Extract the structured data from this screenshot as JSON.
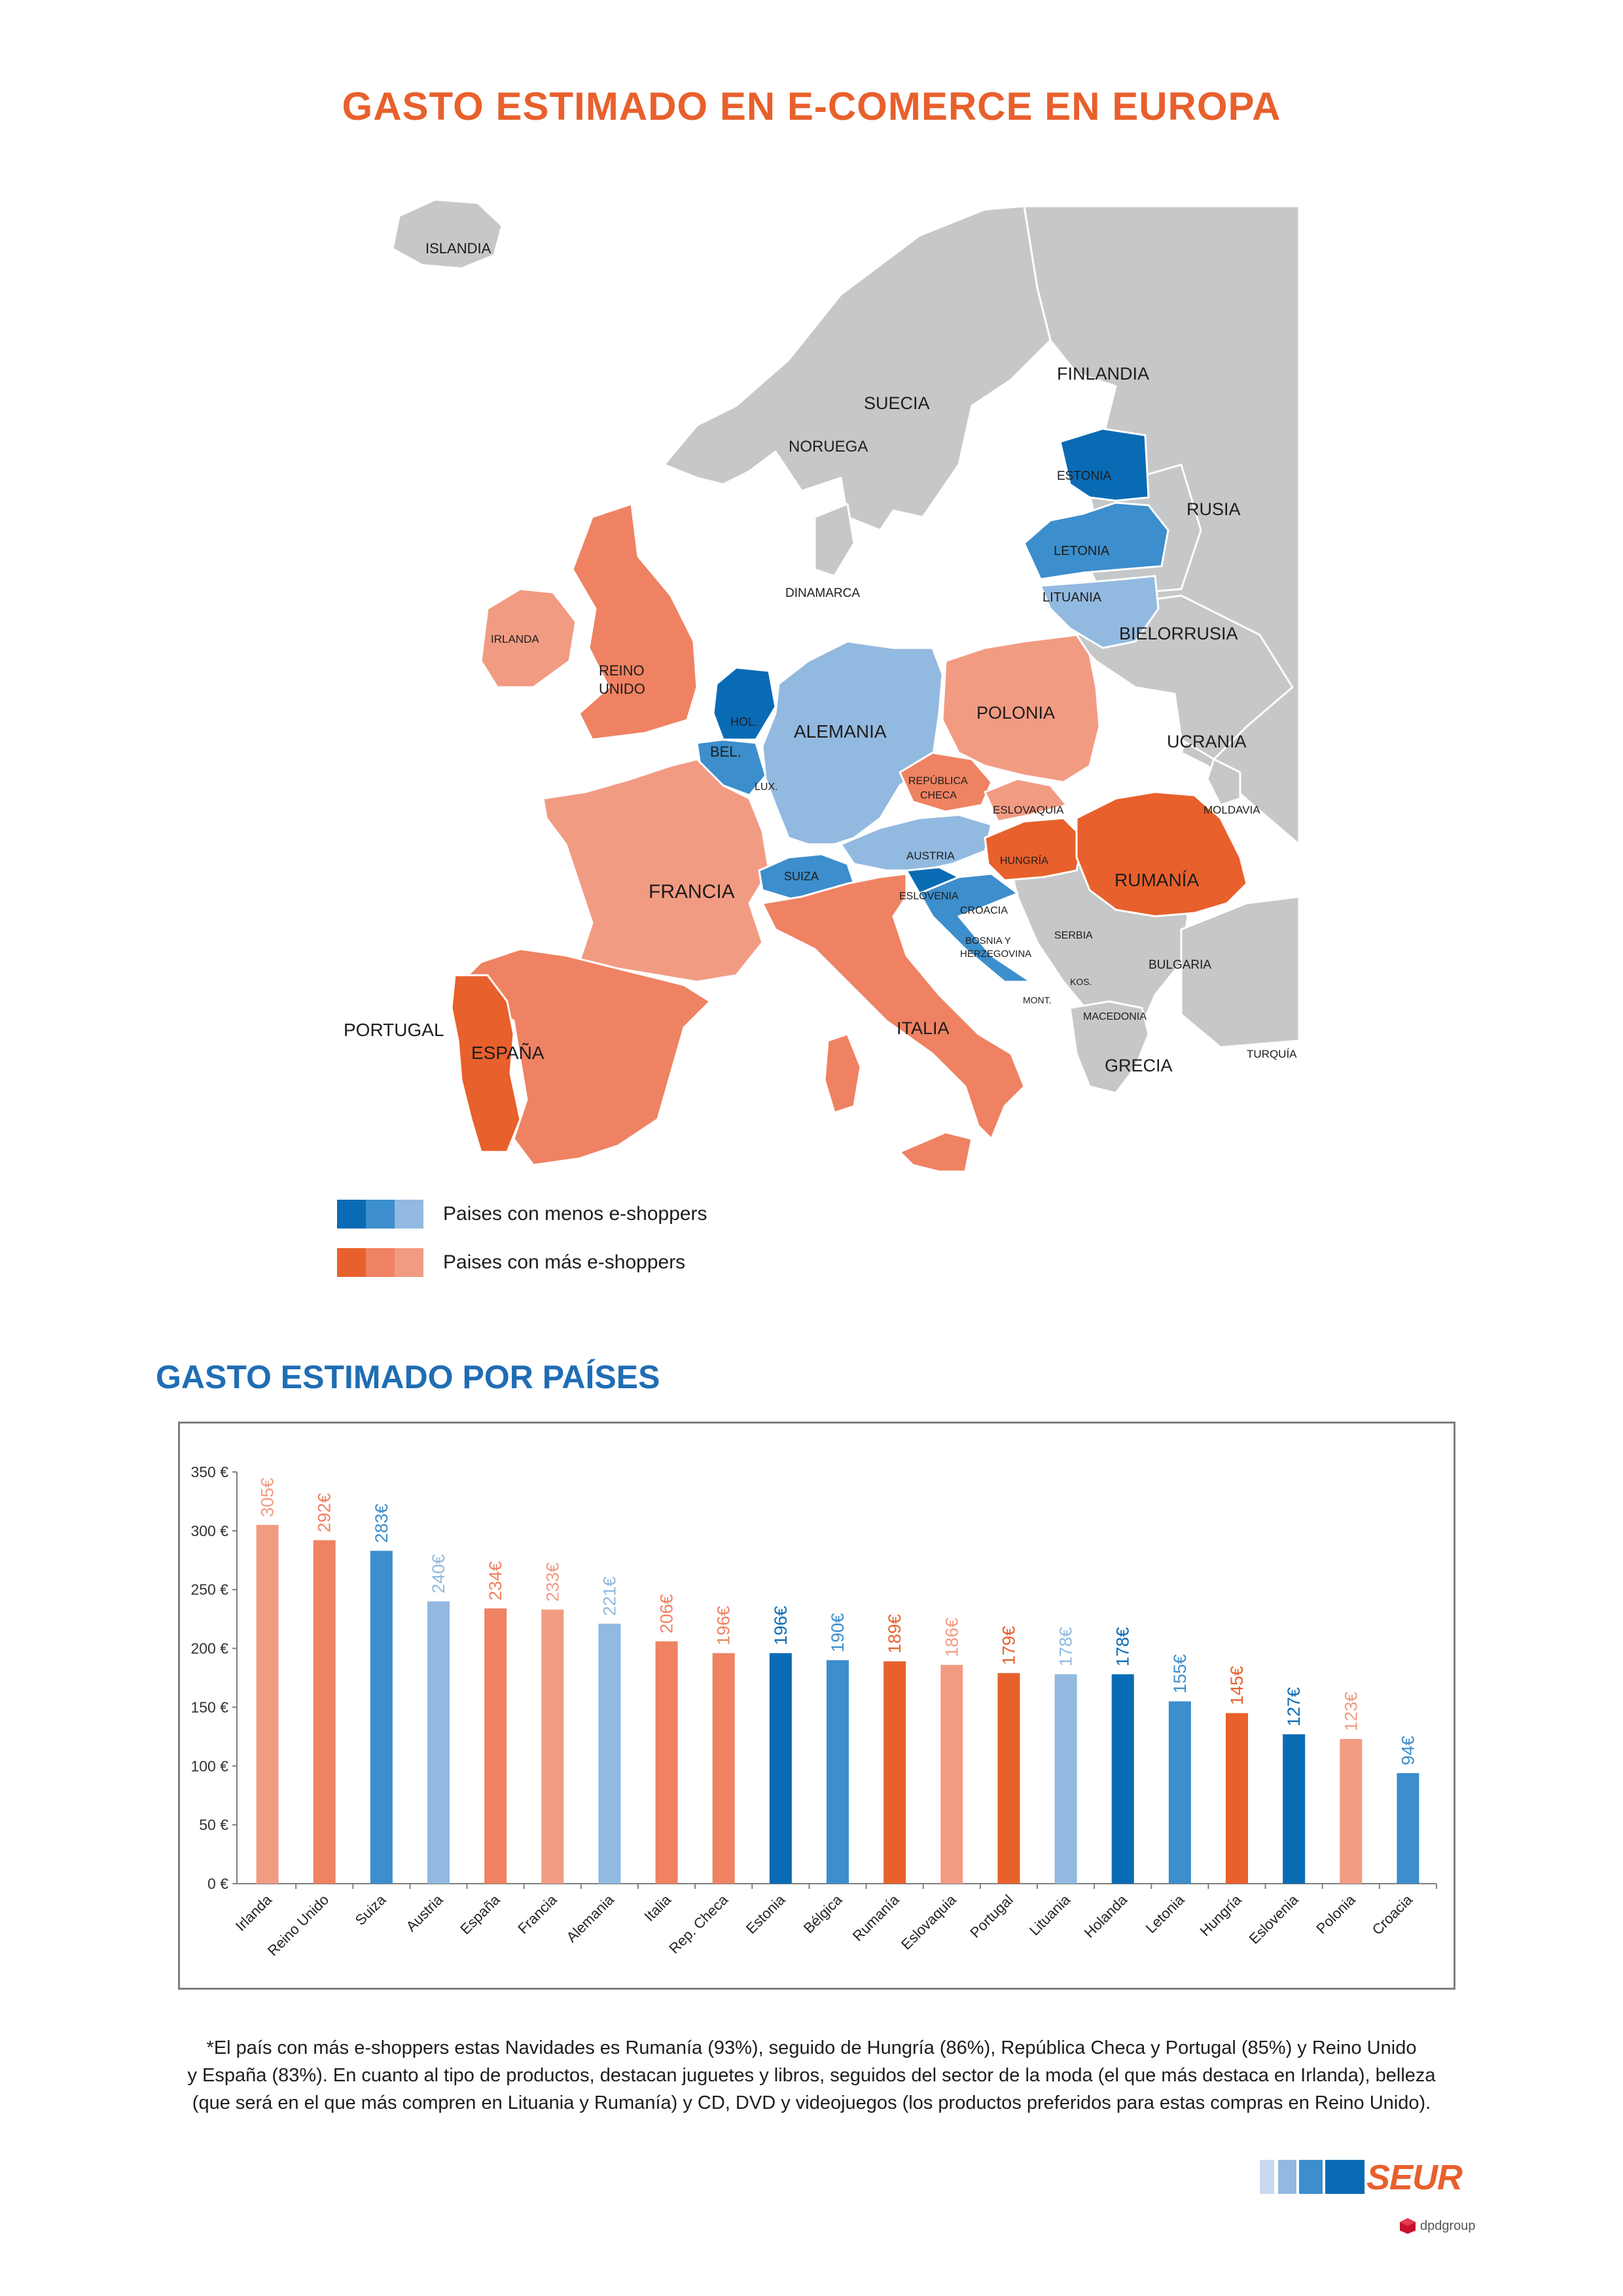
{
  "title": "GASTO ESTIMADO EN E-COMERCE EN EUROPA",
  "colors": {
    "blue_dark": "#0a6bb5",
    "blue_mid": "#3c8ecc",
    "blue_light": "#92b9e0",
    "orange_dark": "#e8602c",
    "orange_mid": "#ef8262",
    "orange_light": "#f29b83",
    "gray": "#c6c7c9"
  },
  "map": {
    "labels": {
      "islandia": "ISLANDIA",
      "finlandia": "FINLANDIA",
      "suecia": "SUECIA",
      "noruega": "NORUEGA",
      "estonia": "ESTONIA",
      "rusia": "RUSIA",
      "letonia": "LETONIA",
      "lituania": "LITUANIA",
      "dinamarca": "DINAMARCA",
      "bielorrusia": "BIELORRUSIA",
      "irlanda": "IRLANDA",
      "reino_unido_1": "REINO",
      "reino_unido_2": "UNIDO",
      "hol": "HOL.",
      "alemania": "ALEMANIA",
      "polonia": "POLONIA",
      "bel": "BEL.",
      "lux": "LUX.",
      "republica_checa_1": "REPÚBLICA",
      "republica_checa_2": "CHECA",
      "ucrania": "UCRANIA",
      "eslovaquia": "ESLOVAQUIA",
      "moldavia": "MOLDAVIA",
      "austria": "AUSTRIA",
      "hungria": "HUNGRÍA",
      "rumania": "RUMANÍA",
      "suiza": "SUIZA",
      "francia": "FRANCIA",
      "eslovenia": "ESLOVENIA",
      "croacia": "CROACIA",
      "bosnia_1": "BOSNIA Y",
      "bosnia_2": "HERZEGOVINA",
      "serbia": "SERBIA",
      "bulgaria": "BULGARIA",
      "kos": "KOS.",
      "mont": "MONT.",
      "macedonia": "MACEDONIA",
      "portugal": "PORTUGAL",
      "espana": "ESPAÑA",
      "italia": "ITALIA",
      "grecia": "GRECIA",
      "turquia": "TURQUÍA"
    }
  },
  "legend": {
    "less": "Paises con menos e-shoppers",
    "more": "Paises con más e-shoppers"
  },
  "section_title": "GASTO ESTIMADO POR PAÍSES",
  "chart_data": {
    "type": "bar",
    "title": "",
    "xlabel": "",
    "ylabel": "",
    "ylim": [
      0,
      350
    ],
    "yticks": [
      0,
      50,
      100,
      150,
      200,
      250,
      300,
      350
    ],
    "ytick_labels": [
      "0 €",
      "50 €",
      "100 €",
      "150 €",
      "200 €",
      "250 €",
      "300 €",
      "350 €"
    ],
    "grid": false,
    "categories": [
      "Irlanda",
      "Reino Unido",
      "Suiza",
      "Austria",
      "España",
      "Francia",
      "Alemania",
      "Italia",
      "Rep. Checa",
      "Estonia",
      "Bélgica",
      "Rumanía",
      "Eslovaquia",
      "Portugal",
      "Lituania",
      "Holanda",
      "Letonia",
      "Hungría",
      "Eslovenia",
      "Polonia",
      "Croacia"
    ],
    "values": [
      305,
      292,
      283,
      240,
      234,
      233,
      221,
      206,
      196,
      196,
      190,
      189,
      186,
      179,
      178,
      178,
      155,
      145,
      127,
      123,
      94
    ],
    "value_labels": [
      "305€",
      "292€",
      "283€",
      "240€",
      "234€",
      "233€",
      "221€",
      "206€",
      "196€",
      "196€",
      "190€",
      "189€",
      "186€",
      "179€",
      "178€",
      "178€",
      "155€",
      "145€",
      "127€",
      "123€",
      "94€"
    ],
    "bar_colors": [
      "#f29b83",
      "#ef8262",
      "#3c8ecc",
      "#92b9e0",
      "#ef8262",
      "#f29b83",
      "#92b9e0",
      "#ef8262",
      "#ef8262",
      "#0a6bb5",
      "#3c8ecc",
      "#e8602c",
      "#f29b83",
      "#e8602c",
      "#92b9e0",
      "#0a6bb5",
      "#3c8ecc",
      "#e8602c",
      "#0a6bb5",
      "#f29b83",
      "#3c8ecc"
    ]
  },
  "footnote": [
    "*El país con más e-shoppers estas Navidades es Rumanía (93%), seguido de Hungría (86%), República Checa y Portugal (85%) y Reino Unido",
    "y España (83%). En cuanto al tipo de productos, destacan juguetes y libros, seguidos del sector de la moda (el que más destaca en Irlanda), belleza",
    "(que será en el que más compren en Lituania y Rumanía) y CD, DVD y videojuegos (los productos preferidos para estas compras en Reino Unido)."
  ],
  "brand": {
    "logo": "SEUR",
    "sub": "dpdgroup"
  }
}
